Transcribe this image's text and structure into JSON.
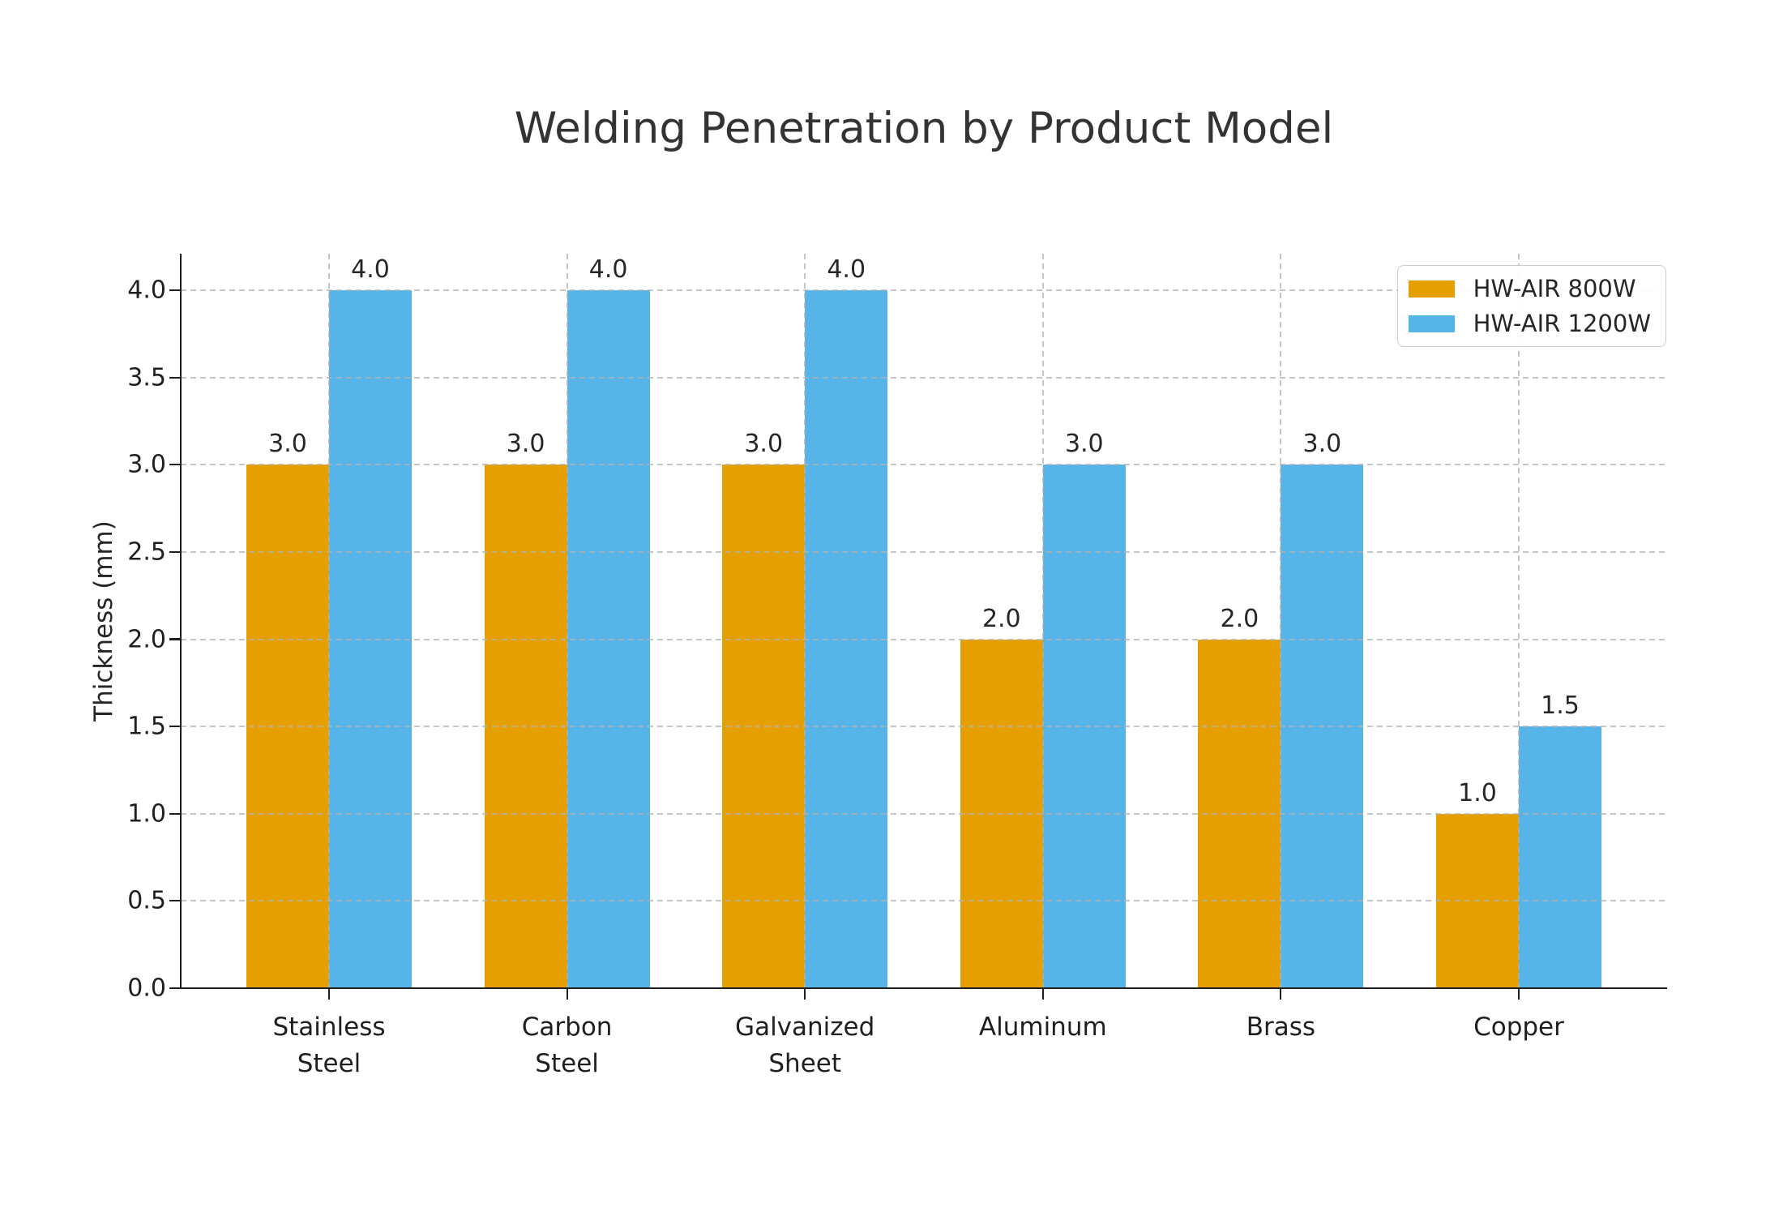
{
  "chart_data": {
    "type": "bar",
    "title": "Welding Penetration by Product Model",
    "xlabel": "",
    "ylabel": "Thickness (mm)",
    "categories": [
      "Stainless\nSteel",
      "Carbon\nSteel",
      "Galvanized\nSheet",
      "Aluminum",
      "Brass",
      "Copper"
    ],
    "series": [
      {
        "name": "HW-AIR 800W",
        "color": "#E69F00",
        "values": [
          3.0,
          3.0,
          3.0,
          2.0,
          2.0,
          1.0
        ]
      },
      {
        "name": "HW-AIR 1200W",
        "color": "#56B4E9",
        "values": [
          4.0,
          4.0,
          4.0,
          3.0,
          3.0,
          1.5
        ]
      }
    ],
    "yticks": [
      0.0,
      0.5,
      1.0,
      1.5,
      2.0,
      2.5,
      3.0,
      3.5,
      4.0
    ],
    "ylim": [
      0,
      4.21
    ],
    "grid": true,
    "grid_style": "dashed",
    "grid_color": "#c9c9c9",
    "legend_position": "upper right",
    "bar_value_labels": true,
    "value_label_format": "0.0",
    "background": "#ffffff"
  }
}
